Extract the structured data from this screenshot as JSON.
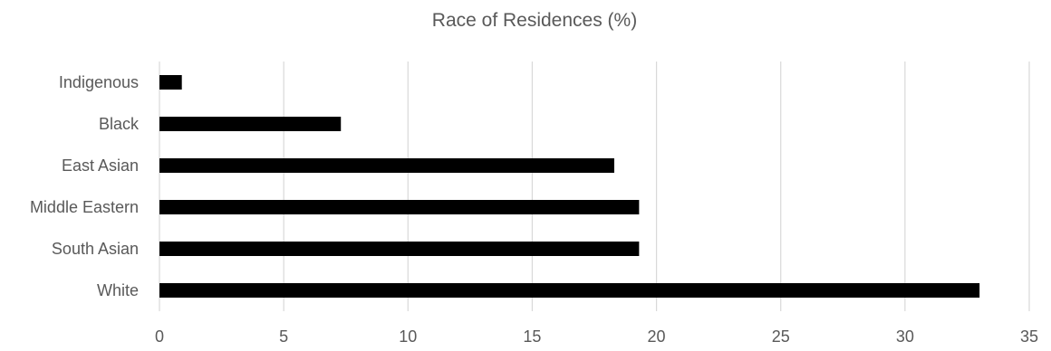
{
  "chart_data": {
    "type": "bar",
    "orientation": "horizontal",
    "title": "Race of Residences (%)",
    "categories": [
      "Indigenous",
      "Black",
      "East Asian",
      "Middle Eastern",
      "South Asian",
      "White"
    ],
    "values": [
      0.9,
      7.3,
      18.3,
      19.3,
      19.3,
      33.0
    ],
    "xlim": [
      0,
      35
    ],
    "x_ticks": [
      "0",
      "5",
      "10",
      "15",
      "20",
      "25",
      "30",
      "35"
    ],
    "xlabel": "",
    "ylabel": "",
    "grid": "vertical",
    "legend": "none",
    "bar_color": "#000000"
  }
}
